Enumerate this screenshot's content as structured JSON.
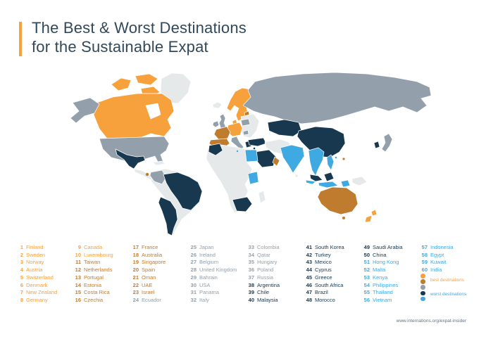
{
  "header": {
    "title_line1": "The Best & Worst Destinations",
    "title_line2": "for the Sustainable Expat"
  },
  "palette": {
    "t1": "#F6A13C",
    "t2": "#C07C2E",
    "t3": "#93A0AB",
    "t4": "#17384F",
    "t5": "#3FA9E1",
    "unranked": "#E6E9EA",
    "water": "#FFFFFF",
    "title_text": "#31485B",
    "footer_text": "#5E7385"
  },
  "legend": {
    "dot_tiers": [
      "t1",
      "t2",
      "t3",
      "t4",
      "t5"
    ],
    "best_label": "best destinations",
    "worst_label": "worst destinations"
  },
  "footer": {
    "url": "www.internations.org/expat-insider"
  },
  "ranking": {
    "columns": [
      [
        {
          "r": 1,
          "n": "Finland",
          "t": "t1"
        },
        {
          "r": 2,
          "n": "Sweden",
          "t": "t1"
        },
        {
          "r": 3,
          "n": "Norway",
          "t": "t1"
        },
        {
          "r": 4,
          "n": "Austria",
          "t": "t1"
        },
        {
          "r": 5,
          "n": "Switzerland",
          "t": "t1"
        },
        {
          "r": 6,
          "n": "Denmark",
          "t": "t1"
        },
        {
          "r": 7,
          "n": "New Zealand",
          "t": "t1"
        },
        {
          "r": 8,
          "n": "Germany",
          "t": "t1"
        }
      ],
      [
        {
          "r": 9,
          "n": "Canada",
          "t": "t1"
        },
        {
          "r": 10,
          "n": "Luxembourg",
          "t": "t1"
        },
        {
          "r": 11,
          "n": "Taiwan",
          "t": "t2"
        },
        {
          "r": 12,
          "n": "Netherlands",
          "t": "t2"
        },
        {
          "r": 13,
          "n": "Portugal",
          "t": "t2"
        },
        {
          "r": 14,
          "n": "Estonia",
          "t": "t2"
        },
        {
          "r": 15,
          "n": "Costa Rica",
          "t": "t2"
        },
        {
          "r": 16,
          "n": "Czechia",
          "t": "t2"
        }
      ],
      [
        {
          "r": 17,
          "n": "France",
          "t": "t2"
        },
        {
          "r": 18,
          "n": "Australia",
          "t": "t2"
        },
        {
          "r": 19,
          "n": "Singapore",
          "t": "t2"
        },
        {
          "r": 20,
          "n": "Spain",
          "t": "t2"
        },
        {
          "r": 21,
          "n": "Oman",
          "t": "t2"
        },
        {
          "r": 22,
          "n": "UAE",
          "t": "t2"
        },
        {
          "r": 23,
          "n": "Israel",
          "t": "t2"
        },
        {
          "r": 24,
          "n": "Ecuador",
          "t": "t3"
        }
      ],
      [
        {
          "r": 25,
          "n": "Japan",
          "t": "t3"
        },
        {
          "r": 26,
          "n": "Ireland",
          "t": "t3"
        },
        {
          "r": 27,
          "n": "Belgium",
          "t": "t3"
        },
        {
          "r": 28,
          "n": "United Kingdom",
          "t": "t3"
        },
        {
          "r": 29,
          "n": "Bahrain",
          "t": "t3"
        },
        {
          "r": 30,
          "n": "USA",
          "t": "t3"
        },
        {
          "r": 31,
          "n": "Panama",
          "t": "t3"
        },
        {
          "r": 32,
          "n": "Italy",
          "t": "t3"
        }
      ],
      [
        {
          "r": 33,
          "n": "Colombia",
          "t": "t3"
        },
        {
          "r": 34,
          "n": "Qatar",
          "t": "t3"
        },
        {
          "r": 35,
          "n": "Hungary",
          "t": "t3"
        },
        {
          "r": 36,
          "n": "Poland",
          "t": "t3"
        },
        {
          "r": 37,
          "n": "Russia",
          "t": "t3"
        },
        {
          "r": 38,
          "n": "Argentina",
          "t": "t4"
        },
        {
          "r": 39,
          "n": "Chile",
          "t": "t4"
        },
        {
          "r": 40,
          "n": "Malaysia",
          "t": "t4"
        }
      ],
      [
        {
          "r": 41,
          "n": "South Korea",
          "t": "t4"
        },
        {
          "r": 42,
          "n": "Turkey",
          "t": "t4"
        },
        {
          "r": 43,
          "n": "Mexico",
          "t": "t4"
        },
        {
          "r": 44,
          "n": "Cyprus",
          "t": "t4"
        },
        {
          "r": 45,
          "n": "Greece",
          "t": "t4"
        },
        {
          "r": 46,
          "n": "South Africa",
          "t": "t4"
        },
        {
          "r": 47,
          "n": "Brazil",
          "t": "t4"
        },
        {
          "r": 48,
          "n": "Morocco",
          "t": "t4"
        }
      ],
      [
        {
          "r": 49,
          "n": "Saudi Arabia",
          "t": "t4"
        },
        {
          "r": 50,
          "n": "China",
          "t": "t4"
        },
        {
          "r": 51,
          "n": "Hong Kong",
          "t": "t5"
        },
        {
          "r": 52,
          "n": "Malta",
          "t": "t5"
        },
        {
          "r": 53,
          "n": "Kenya",
          "t": "t5"
        },
        {
          "r": 54,
          "n": "Philippines",
          "t": "t5"
        },
        {
          "r": 55,
          "n": "Thailand",
          "t": "t5"
        },
        {
          "r": 56,
          "n": "Vietnam",
          "t": "t5"
        }
      ],
      [
        {
          "r": 57,
          "n": "Indonesia",
          "t": "t5"
        },
        {
          "r": 58,
          "n": "Egypt",
          "t": "t5"
        },
        {
          "r": 59,
          "n": "Kuwait",
          "t": "t5"
        },
        {
          "r": 60,
          "n": "India",
          "t": "t5"
        }
      ]
    ]
  },
  "map_regions": {
    "greenland": "unranked",
    "canada": "t1",
    "canada-islands": "t1",
    "canada-islands-2": "t1",
    "canada-islands-3": "t1",
    "hudson-bay": "water",
    "alaska": "t3",
    "usa": "t3",
    "mexico": "t4",
    "central-america": "unranked",
    "costa-rica": "t2",
    "cuba": "unranked",
    "south-america": "unranked",
    "colombia": "t3",
    "brazil": "t4",
    "argentina-chile": "t4",
    "iceland": "unranked",
    "ireland": "t3",
    "uk": "t3",
    "scandinavia": "t1",
    "denmark": "t1",
    "estonia": "t2",
    "germany-central": "t1",
    "france": "t2",
    "iberia": "t2",
    "italy": "t3",
    "eastern-europe": "unranked",
    "poland": "t3",
    "hungary": "t3",
    "greece": "t4",
    "turkey": "t4",
    "cyprus": "t4",
    "malta": "t5",
    "russia": "t3",
    "kazakhstan": "t4",
    "china": "t4",
    "middle-east": "unranked",
    "saudi-arabia": "t4",
    "oman": "t2",
    "egypt": "t5",
    "africa": "unranked",
    "morocco": "t4",
    "kenya": "t5",
    "south-africa": "t4",
    "madagascar": "unranked",
    "india": "t5",
    "sri-lanka": "unranked",
    "se-asia": "t5",
    "malaysia": "t4",
    "borneo": "t4",
    "indonesia": "t5",
    "indonesia-2": "t5",
    "indonesia-3": "t5",
    "philippines": "t5",
    "papua": "unranked",
    "japan": "t3",
    "south-korea": "t4",
    "taiwan": "t2",
    "hong-kong": "t5",
    "australia": "t2",
    "tasmania": "t2",
    "new-zealand": "t1",
    "new-zealand-south": "t1"
  }
}
